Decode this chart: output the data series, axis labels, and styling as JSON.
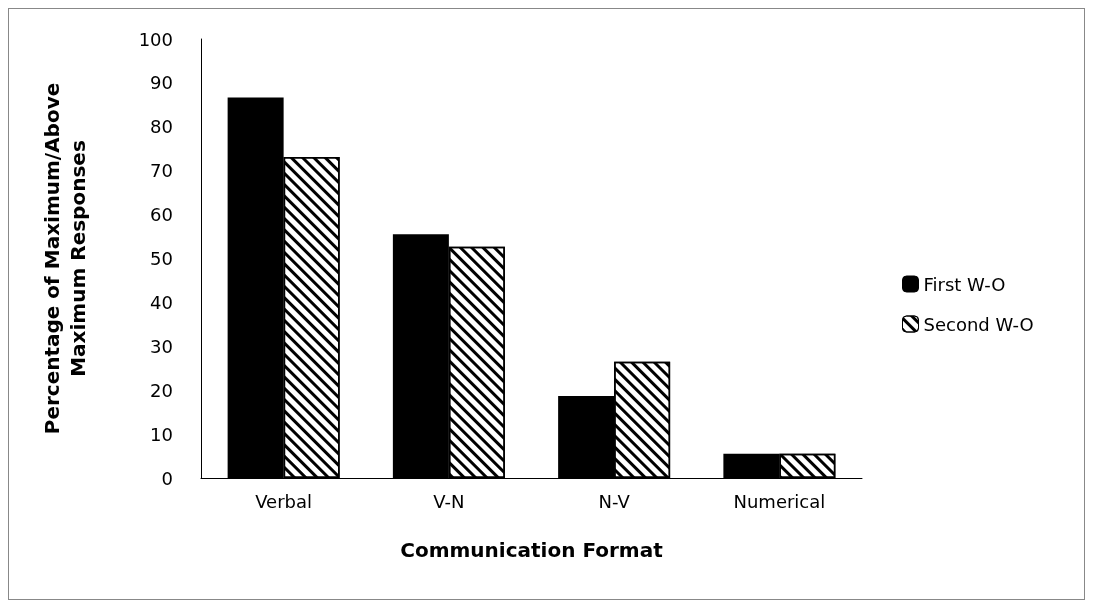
{
  "chart_data": {
    "type": "bar",
    "xlabel": "Communication Format",
    "ylabel": "Percentage of Maximum/Above\nMaximum Responses",
    "categories": [
      "Verbal",
      "V-N",
      "N-V",
      "Numerical"
    ],
    "series": [
      {
        "name": "First W-O",
        "color": "#000000",
        "values": [
          86.7,
          55.5,
          18.7,
          5.5
        ]
      },
      {
        "name": "Second W-O",
        "color": "#ffffff",
        "values": [
          73.1,
          52.7,
          26.5,
          5.5
        ]
      }
    ],
    "ylim": [
      0,
      100
    ],
    "yticks": [
      0,
      10,
      20,
      30,
      40,
      50,
      60,
      70,
      80,
      90,
      100
    ],
    "grid": false,
    "legend": "right"
  }
}
